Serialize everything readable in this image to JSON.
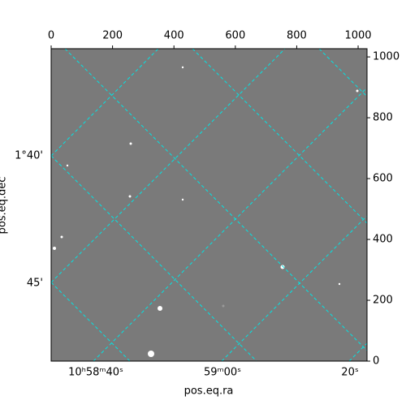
{
  "chart_data": {
    "type": "image",
    "xlabel": "pos.eq.ra",
    "ylabel": "pos.eq.dec",
    "xlim": [
      0,
      1029
    ],
    "xticks": [
      0,
      200,
      400,
      600,
      800,
      1000
    ],
    "ylim": [
      0,
      1027
    ],
    "yticks": [
      0,
      200,
      400,
      600,
      800,
      1000
    ],
    "ra_ticks": [
      "10ʰ58ᵐ40ˢ",
      "59ᵐ00ˢ",
      "20ˢ"
    ],
    "dec_ticks": [
      "1°40'",
      "45'"
    ],
    "grid_color": "#00e5e5"
  }
}
